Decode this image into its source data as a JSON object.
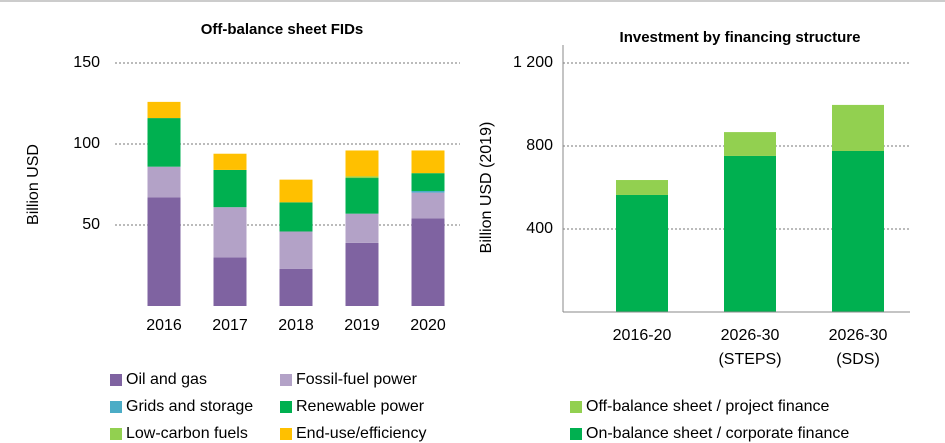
{
  "chart_data": [
    {
      "type": "bar",
      "stacked": true,
      "title": "Off-balance sheet FIDs",
      "y_label": "Billion USD",
      "categories": [
        "2016",
        "2017",
        "2018",
        "2019",
        "2020"
      ],
      "series": [
        {
          "name": "Oil and gas",
          "color": "#7f63a1",
          "values": [
            67,
            30,
            23,
            39,
            54
          ]
        },
        {
          "name": "Fossil-fuel power",
          "color": "#b3a2c7",
          "values": [
            19,
            31,
            23,
            18,
            16
          ]
        },
        {
          "name": "Grids and storage",
          "color": "#4bacc6",
          "values": [
            0,
            0,
            0,
            0,
            1
          ]
        },
        {
          "name": "Renewable power",
          "color": "#00b050",
          "values": [
            30,
            23,
            18,
            22,
            11
          ]
        },
        {
          "name": "Low-carbon fuels",
          "color": "#92d050",
          "values": [
            0,
            0,
            0,
            1,
            0
          ]
        },
        {
          "name": "End-use/efficiency",
          "color": "#ffc000",
          "values": [
            10,
            10,
            14,
            16,
            14
          ]
        }
      ],
      "ylim": [
        0,
        150
      ],
      "yticks": [
        50,
        100,
        150
      ],
      "grid": true
    },
    {
      "type": "bar",
      "stacked": true,
      "title": "Investment by financing structure",
      "y_label": "Billion USD (2019)",
      "categories": [
        "2016-20",
        "2026-30 (STEPS)",
        "2026-30 (SDS)"
      ],
      "series": [
        {
          "name": "On-balance sheet / corporate finance",
          "color": "#00b050",
          "values": [
            564,
            752,
            776
          ]
        },
        {
          "name": "Off-balance sheet / project finance",
          "color": "#92d050",
          "values": [
            72,
            115,
            222
          ]
        }
      ],
      "ylim": [
        0,
        1200
      ],
      "yticks": [
        400,
        800,
        {
          "value": 1200,
          "label": "1 200"
        }
      ],
      "grid": true
    }
  ]
}
